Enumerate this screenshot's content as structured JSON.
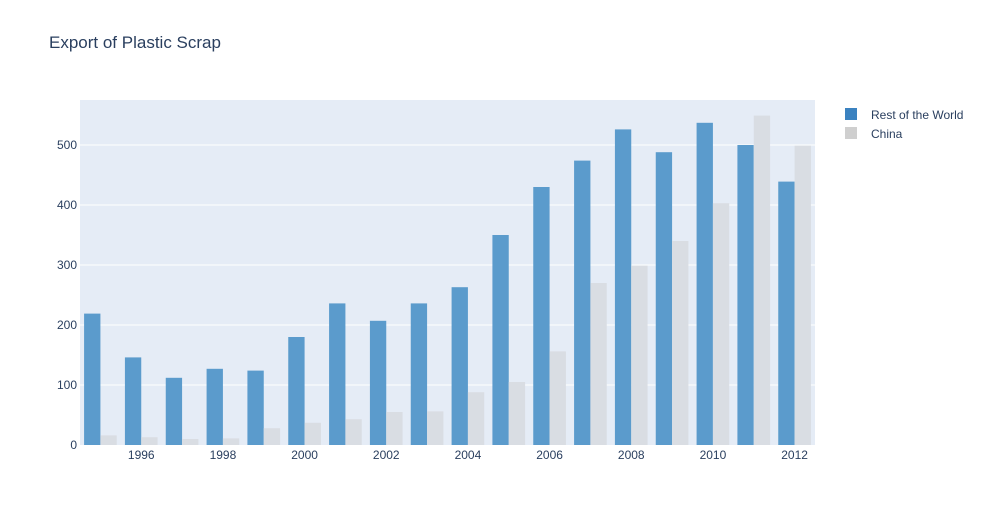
{
  "colors": {
    "plot_bg": "#e5ecf6",
    "grid": "#ffffff",
    "text": "#2a3f5f"
  },
  "chart_data": {
    "type": "bar",
    "title": "Export of Plastic Scrap",
    "xlabel": "",
    "ylabel": "",
    "x": [
      1995,
      1996,
      1997,
      1998,
      1999,
      2000,
      2001,
      2002,
      2003,
      2004,
      2005,
      2006,
      2007,
      2008,
      2009,
      2010,
      2011,
      2012
    ],
    "x_tick_labels": [
      "1996",
      "1998",
      "2000",
      "2002",
      "2004",
      "2006",
      "2008",
      "2010",
      "2012"
    ],
    "y_tick_labels": [
      "0",
      "100",
      "200",
      "300",
      "400",
      "500"
    ],
    "ylim": [
      0,
      575
    ],
    "grid": true,
    "legend_position": "top-right",
    "series": [
      {
        "name": "Rest of the World",
        "color": "#5b9bcc",
        "legend_color": "#3b82c0",
        "values": [
          219,
          146,
          112,
          127,
          124,
          180,
          236,
          207,
          236,
          263,
          350,
          430,
          474,
          526,
          488,
          537,
          500,
          439
        ]
      },
      {
        "name": "China",
        "color": "#d9dde3",
        "legend_color": "#cfcfcf",
        "values": [
          16,
          13,
          10,
          11,
          28,
          37,
          43,
          55,
          56,
          88,
          105,
          156,
          270,
          299,
          340,
          403,
          549,
          499
        ]
      }
    ]
  }
}
